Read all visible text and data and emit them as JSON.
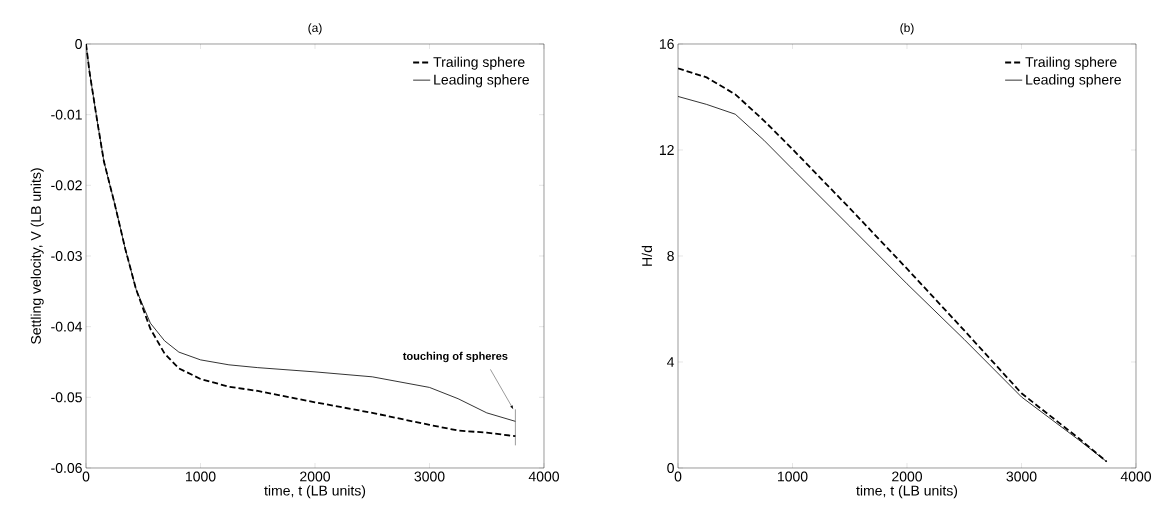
{
  "chart_data": [
    {
      "type": "line",
      "title": "(a)",
      "xlabel": "time, t (LB units)",
      "ylabel": "Settling velocity, V (LB units)",
      "xlim": [
        0,
        4000
      ],
      "xticks": [
        0,
        1000,
        2000,
        3000,
        4000
      ],
      "ylim": [
        -0.06,
        0
      ],
      "yticks": [
        -0.06,
        -0.05,
        -0.04,
        -0.03,
        -0.02,
        -0.01,
        0
      ],
      "legend": "top right",
      "series": [
        {
          "name": "Trailing sphere",
          "color": "#000000",
          "line_style": "dashed",
          "x": [
            0,
            31,
            94,
            156,
            250,
            343,
            437,
            562,
            686,
            811,
            1000,
            1248,
            1500,
            2000,
            2500,
            3000,
            3250,
            3500,
            3750
          ],
          "values": [
            0,
            -0.004,
            -0.0105,
            -0.0166,
            -0.0226,
            -0.029,
            -0.0347,
            -0.0403,
            -0.0438,
            -0.0459,
            -0.0474,
            -0.0485,
            -0.0491,
            -0.0507,
            -0.0522,
            -0.0539,
            -0.0547,
            -0.055,
            -0.0555
          ]
        },
        {
          "name": "Leading sphere",
          "color": "#000000",
          "line_style": "solid",
          "x": [
            0,
            31,
            94,
            156,
            250,
            343,
            437,
            562,
            686,
            811,
            1000,
            1248,
            1500,
            2000,
            2500,
            3000,
            3250,
            3500,
            3750
          ],
          "values": [
            0,
            -0.004,
            -0.0105,
            -0.0166,
            -0.0226,
            -0.029,
            -0.0347,
            -0.0395,
            -0.042,
            -0.0436,
            -0.0447,
            -0.0454,
            -0.0458,
            -0.0464,
            -0.0471,
            -0.0486,
            -0.0502,
            -0.0522,
            -0.0534
          ]
        }
      ],
      "annotations": [
        "touching of spheres"
      ]
    },
    {
      "type": "line",
      "title": "(b)",
      "xlabel": "time, t (LB units)",
      "ylabel": "H/d",
      "xlim": [
        0,
        4000
      ],
      "xticks": [
        0,
        1000,
        2000,
        3000,
        4000
      ],
      "ylim": [
        0,
        16
      ],
      "yticks": [
        0,
        4,
        8,
        12,
        16
      ],
      "legend": "top right",
      "series": [
        {
          "name": "Trailing sphere",
          "color": "#000000",
          "line_style": "dashed",
          "x": [
            0,
            250,
            500,
            750,
            1000,
            1500,
            2000,
            2500,
            3000,
            3500,
            3744
          ],
          "values": [
            15.08,
            14.74,
            14.1,
            13.11,
            12.03,
            9.8,
            7.52,
            5.19,
            2.82,
            1.12,
            0.24
          ]
        },
        {
          "name": "Leading sphere",
          "color": "#000000",
          "line_style": "solid",
          "x": [
            0,
            250,
            500,
            750,
            1000,
            1500,
            2000,
            2500,
            3000,
            3500,
            3744
          ],
          "values": [
            14.02,
            13.72,
            13.35,
            12.37,
            11.28,
            9.12,
            6.95,
            4.85,
            2.68,
            1.06,
            0.24
          ]
        }
      ]
    }
  ]
}
